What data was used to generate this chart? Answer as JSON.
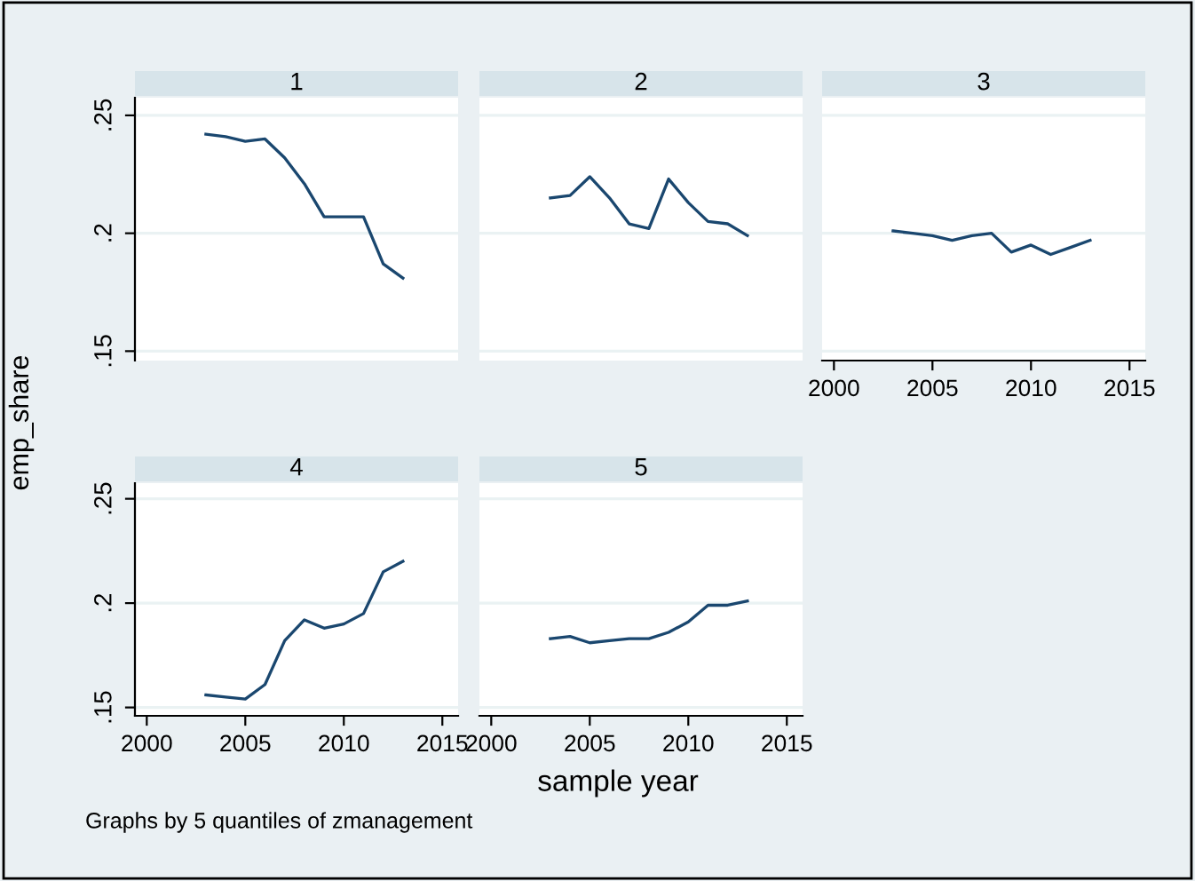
{
  "chart_data": [
    {
      "type": "line",
      "title": "1",
      "ylabel": "emp_share",
      "x": [
        2003,
        2004,
        2005,
        2006,
        2007,
        2008,
        2009,
        2010,
        2011,
        2012,
        2013
      ],
      "series": [
        {
          "color": "#1a476f",
          "values": [
            0.242,
            0.241,
            0.239,
            0.24,
            0.232,
            0.221,
            0.207,
            0.207,
            0.207,
            0.187,
            0.181
          ]
        }
      ],
      "xlim": [
        1999.4,
        2015.8
      ],
      "ylim": [
        0.146,
        0.2575
      ],
      "yticks": [
        {
          "value": 0.15,
          "label": ".15"
        },
        {
          "value": 0.2,
          "label": ".2"
        },
        {
          "value": 0.25,
          "label": ".25"
        }
      ],
      "grid": "y",
      "tick_labels": "y",
      "line_style": "solid"
    },
    {
      "type": "line",
      "title": "2",
      "x": [
        2003,
        2004,
        2005,
        2006,
        2007,
        2008,
        2009,
        2010,
        2011,
        2012,
        2013
      ],
      "series": [
        {
          "color": "#1a476f",
          "values": [
            0.215,
            0.216,
            0.224,
            0.215,
            0.204,
            0.202,
            0.223,
            0.213,
            0.205,
            0.204,
            0.199
          ]
        }
      ],
      "xlim": [
        1999.4,
        2015.8
      ],
      "ylim": [
        0.146,
        0.2575
      ],
      "yticks": [
        {
          "value": 0.15,
          "label": null
        },
        {
          "value": 0.2,
          "label": null
        },
        {
          "value": 0.25,
          "label": null
        }
      ],
      "grid": "y",
      "tick_labels": false,
      "line_style": "solid"
    },
    {
      "type": "line",
      "title": "3",
      "x": [
        2003,
        2004,
        2005,
        2006,
        2007,
        2008,
        2009,
        2010,
        2011,
        2012,
        2013
      ],
      "series": [
        {
          "color": "#1a476f",
          "values": [
            0.201,
            0.2,
            0.199,
            0.197,
            0.199,
            0.2,
            0.192,
            0.195,
            0.191,
            0.194,
            0.197
          ]
        }
      ],
      "xlim": [
        1999.4,
        2015.8
      ],
      "xticks": [
        2000,
        2005,
        2010,
        2015
      ],
      "ylim": [
        0.146,
        0.2575
      ],
      "yticks": [
        {
          "value": 0.15,
          "label": null
        },
        {
          "value": 0.2,
          "label": null
        },
        {
          "value": 0.25,
          "label": null
        }
      ],
      "grid": "y",
      "tick_labels": "x",
      "line_style": "solid"
    },
    {
      "type": "line",
      "title": "4",
      "x": [
        2003,
        2004,
        2005,
        2006,
        2007,
        2008,
        2009,
        2010,
        2011,
        2012,
        2013
      ],
      "series": [
        {
          "color": "#1a476f",
          "values": [
            0.156,
            0.155,
            0.154,
            0.161,
            0.182,
            0.192,
            0.188,
            0.19,
            0.195,
            0.215,
            0.22
          ]
        }
      ],
      "xlim": [
        1999.4,
        2015.8
      ],
      "xticks": [
        2000,
        2005,
        2010,
        2015
      ],
      "ylim": [
        0.146,
        0.2575
      ],
      "yticks": [
        {
          "value": 0.15,
          "label": ".15"
        },
        {
          "value": 0.2,
          "label": ".2"
        },
        {
          "value": 0.25,
          "label": ".25"
        }
      ],
      "grid": "y",
      "line_style": "solid",
      "annotations": [
        "Graphs by 5 quantiles of zmanagement"
      ]
    },
    {
      "type": "line",
      "title": "5",
      "xlabel": "sample year",
      "x": [
        2003,
        2004,
        2005,
        2006,
        2007,
        2008,
        2009,
        2010,
        2011,
        2012,
        2013
      ],
      "series": [
        {
          "color": "#1a476f",
          "values": [
            0.183,
            0.184,
            0.181,
            0.182,
            0.183,
            0.183,
            0.186,
            0.191,
            0.199,
            0.199,
            0.201
          ]
        }
      ],
      "xlim": [
        1999.4,
        2015.8
      ],
      "xticks": [
        2000,
        2005,
        2010,
        2015
      ],
      "ylim": [
        0.146,
        0.2575
      ],
      "yticks": [
        {
          "value": 0.15,
          "label": null
        },
        {
          "value": 0.2,
          "label": null
        },
        {
          "value": 0.25,
          "label": null
        }
      ],
      "grid": "y",
      "tick_labels": "x",
      "line_style": "solid"
    }
  ]
}
